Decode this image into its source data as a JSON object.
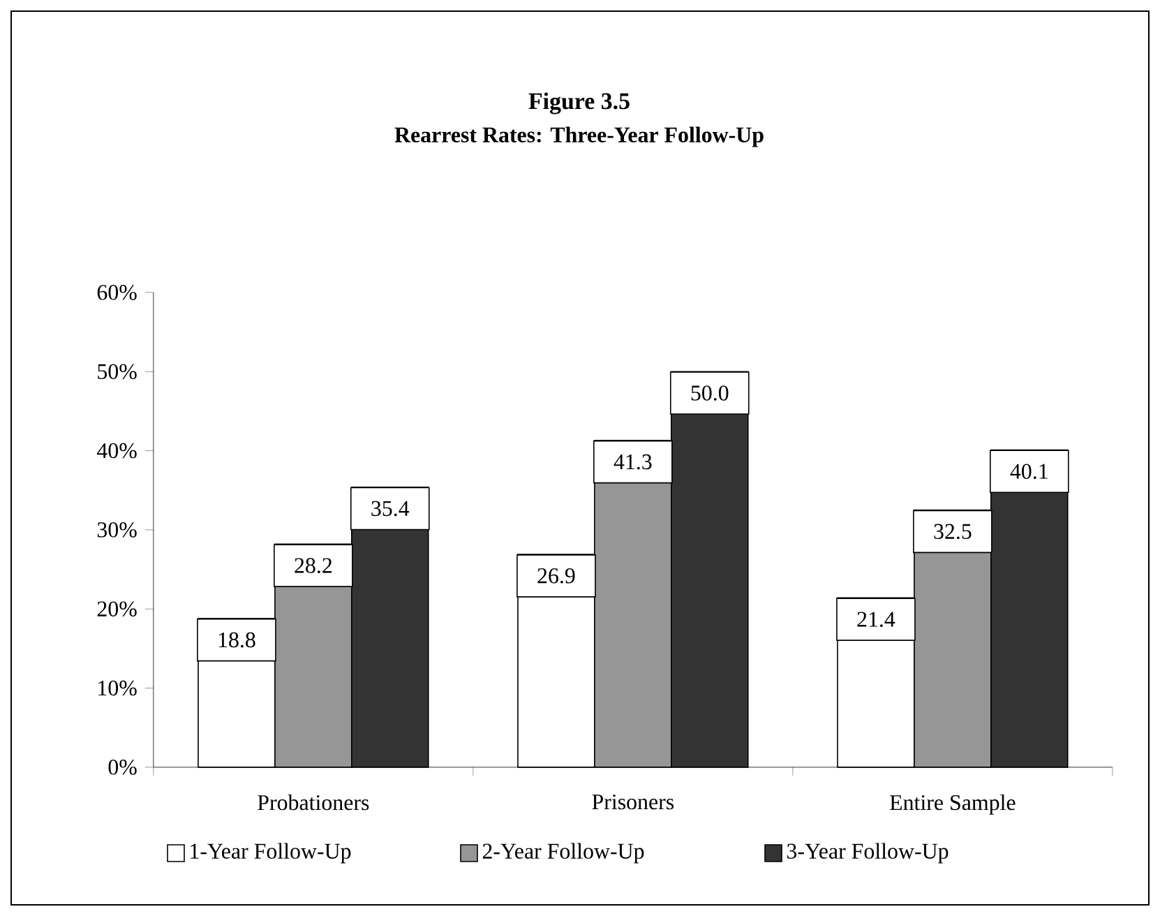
{
  "chart_data": {
    "type": "bar",
    "title": "Figure 3.5",
    "subtitle": "Rearrest Rates: Three-Year Follow-Up",
    "categories": [
      "Probationers",
      "Prisoners",
      "Entire Sample"
    ],
    "series": [
      {
        "name": "1-Year Follow-Up",
        "color": "#ffffff",
        "values": [
          18.8,
          26.9,
          21.4
        ]
      },
      {
        "name": "2-Year Follow-Up",
        "color": "#969696",
        "values": [
          28.2,
          41.3,
          32.5
        ]
      },
      {
        "name": "3-Year Follow-Up",
        "color": "#333333",
        "values": [
          35.4,
          50.0,
          40.1
        ],
        "value_labels": [
          "35.4",
          "50.0",
          "40.1"
        ]
      }
    ],
    "ylim": [
      0,
      60
    ],
    "yticks": [
      {
        "value": 0,
        "label": "0%"
      },
      {
        "value": 10,
        "label": "10%"
      },
      {
        "value": 20,
        "label": "20%"
      },
      {
        "value": 30,
        "label": "30%"
      },
      {
        "value": 40,
        "label": "40%"
      },
      {
        "value": 50,
        "label": "50%"
      },
      {
        "value": 60,
        "label": "60%"
      }
    ],
    "data_labels": true,
    "grid": false,
    "legend": "bottom"
  }
}
